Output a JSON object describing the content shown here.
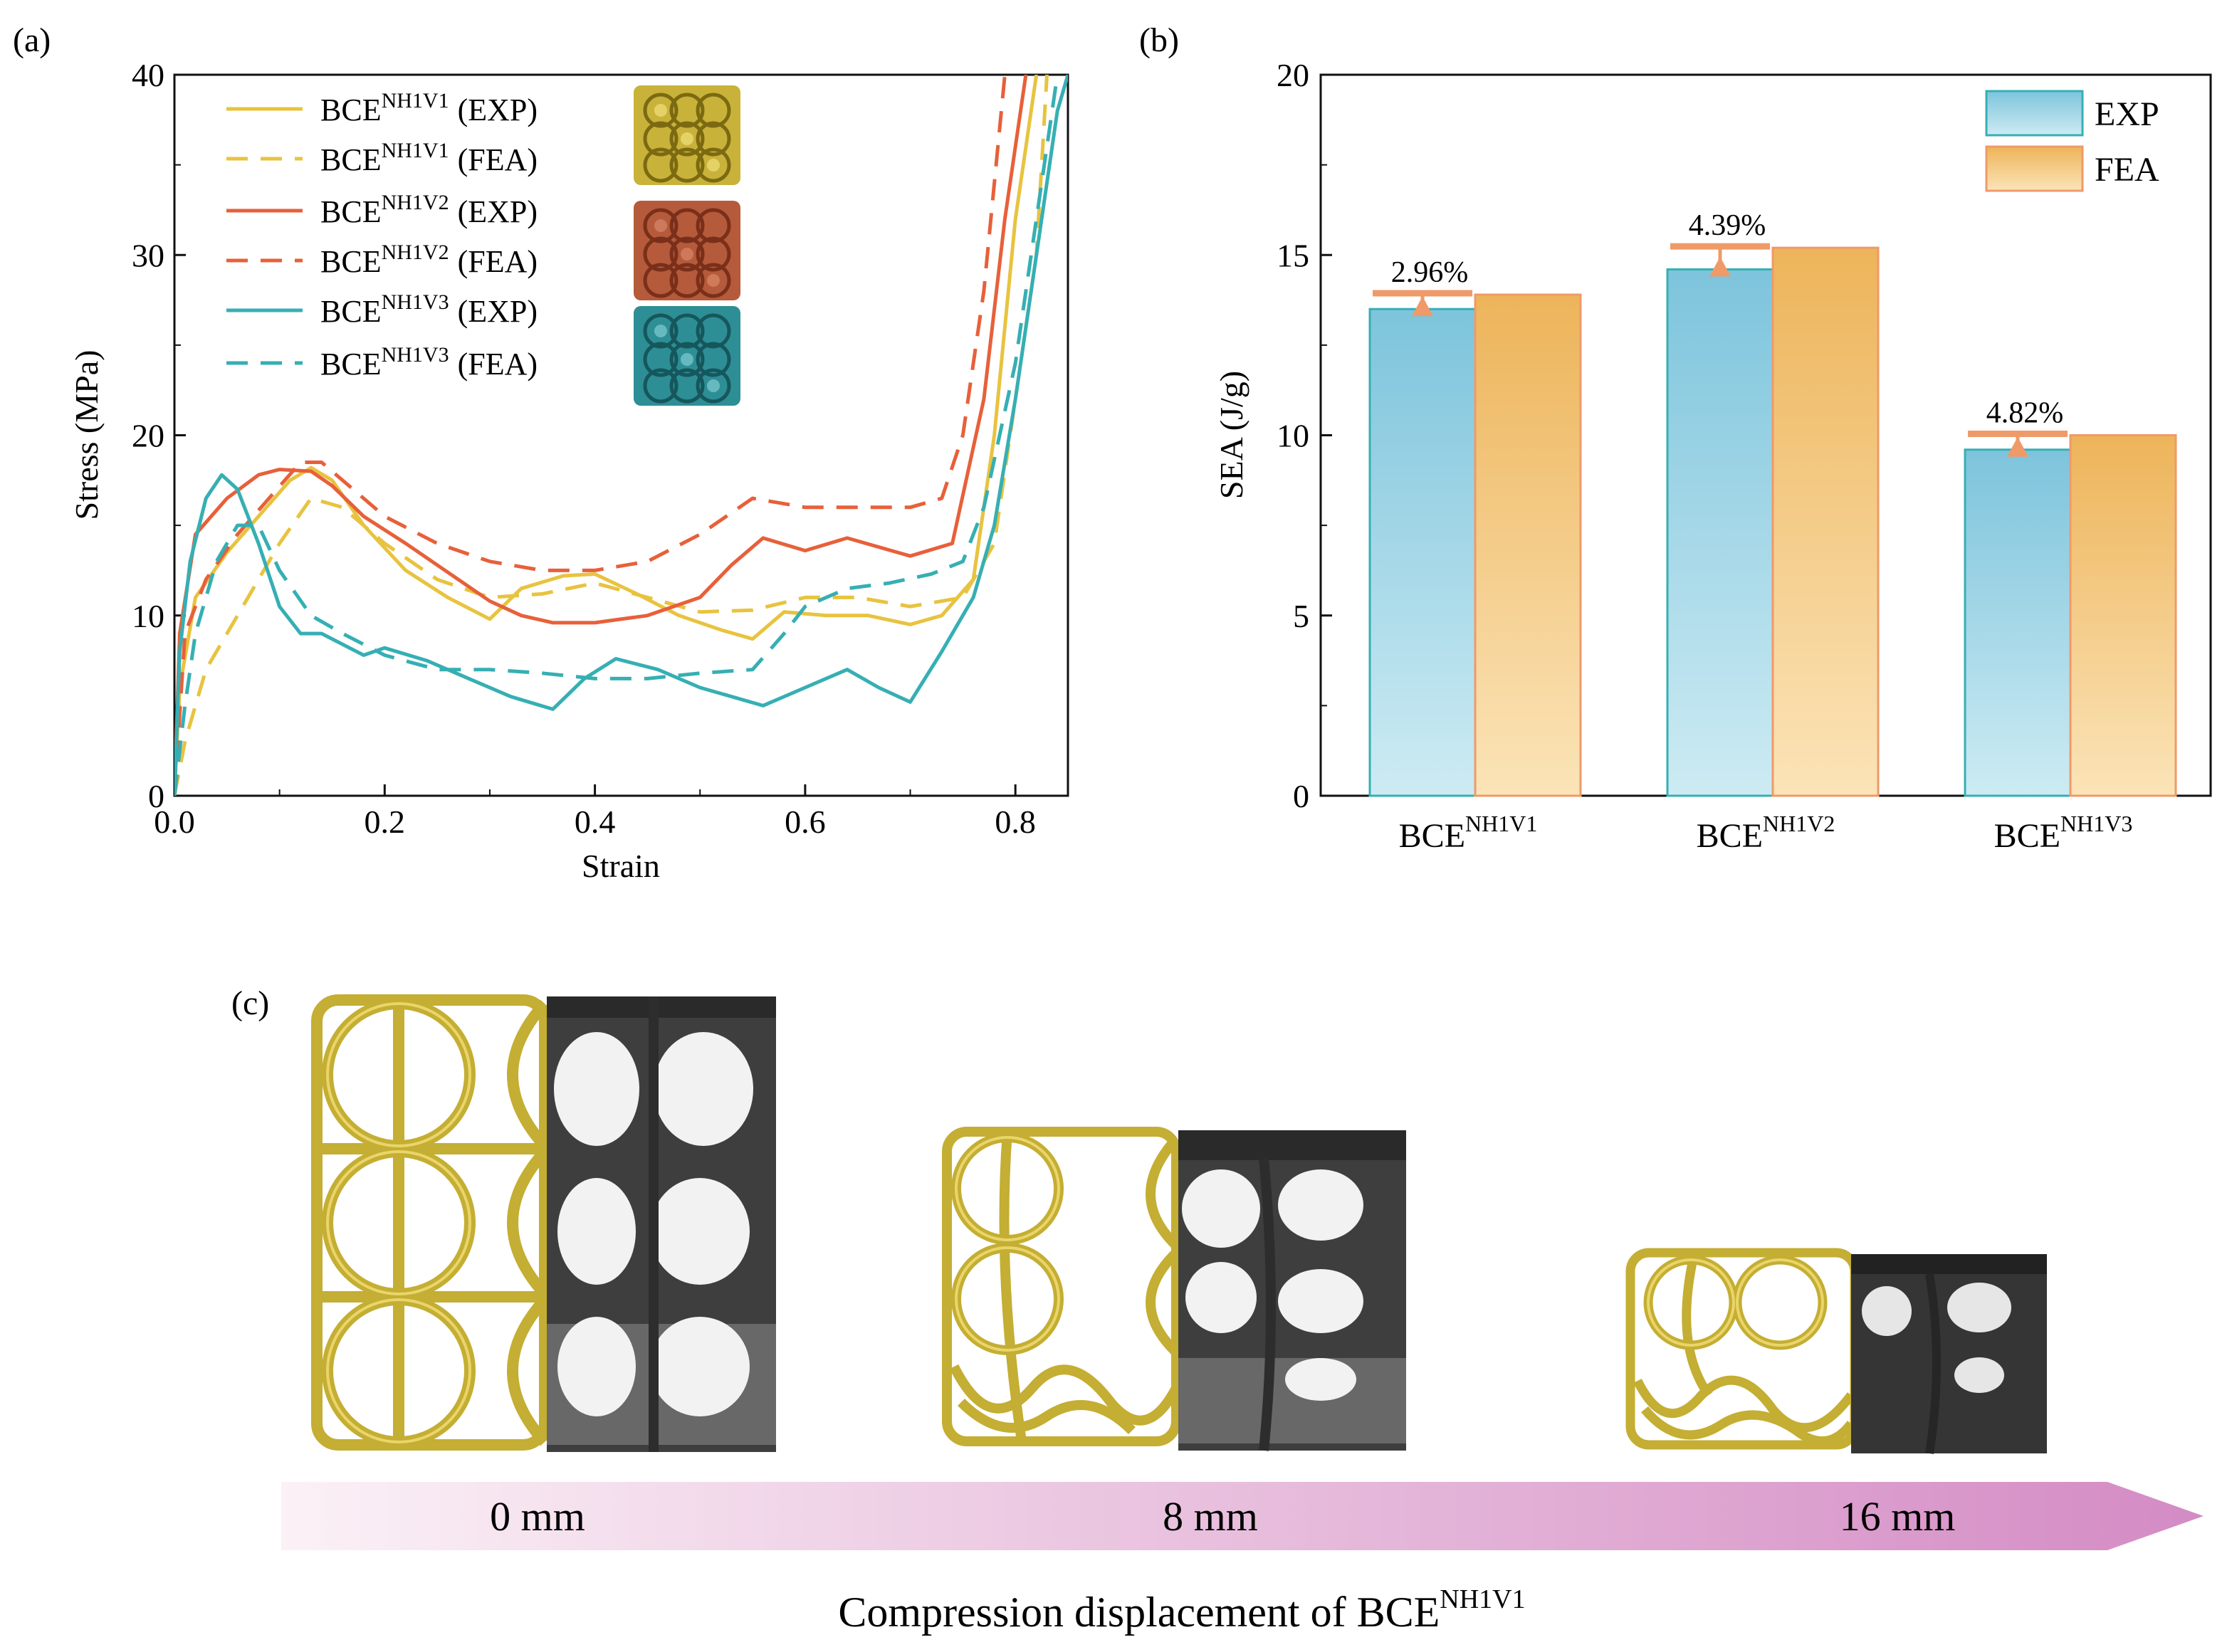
{
  "panels": {
    "a": "(a)",
    "b": "(b)",
    "c": "(c)"
  },
  "chart_data": [
    {
      "type": "line",
      "panel": "(a)",
      "xlabel": "Strain",
      "ylabel": "Stress (MPa)",
      "xlim": [
        0.0,
        0.85
      ],
      "ylim": [
        0,
        40
      ],
      "xticks": [
        "0.0",
        "0.2",
        "0.4",
        "0.6",
        "0.8"
      ],
      "yticks": [
        "0",
        "10",
        "20",
        "30",
        "40"
      ],
      "legend_position": "top-left",
      "series": [
        {
          "name": "BCE",
          "sup": "NH1V1",
          "suffix": "(EXP)",
          "color": "#E8C33F",
          "dash": false,
          "points": [
            [
              0,
              0
            ],
            [
              0.005,
              6
            ],
            [
              0.02,
              11
            ],
            [
              0.05,
              13.5
            ],
            [
              0.08,
              15.5
            ],
            [
              0.11,
              17.5
            ],
            [
              0.13,
              18.2
            ],
            [
              0.15,
              17.5
            ],
            [
              0.18,
              15
            ],
            [
              0.22,
              12.5
            ],
            [
              0.26,
              11
            ],
            [
              0.3,
              9.8
            ],
            [
              0.33,
              11.5
            ],
            [
              0.37,
              12.2
            ],
            [
              0.4,
              12.3
            ],
            [
              0.44,
              11.2
            ],
            [
              0.48,
              10
            ],
            [
              0.52,
              9.2
            ],
            [
              0.55,
              8.7
            ],
            [
              0.58,
              10.2
            ],
            [
              0.62,
              10
            ],
            [
              0.66,
              10
            ],
            [
              0.7,
              9.5
            ],
            [
              0.73,
              10
            ],
            [
              0.76,
              12
            ],
            [
              0.78,
              20
            ],
            [
              0.8,
              32
            ],
            [
              0.82,
              40
            ]
          ]
        },
        {
          "name": "BCE",
          "sup": "NH1V1",
          "suffix": "(FEA)",
          "color": "#E8C33F",
          "dash": true,
          "points": [
            [
              0,
              0
            ],
            [
              0.01,
              3
            ],
            [
              0.03,
              7
            ],
            [
              0.06,
              10
            ],
            [
              0.1,
              14
            ],
            [
              0.13,
              16.5
            ],
            [
              0.16,
              16
            ],
            [
              0.2,
              14
            ],
            [
              0.25,
              12
            ],
            [
              0.3,
              11
            ],
            [
              0.35,
              11.2
            ],
            [
              0.4,
              11.8
            ],
            [
              0.45,
              11
            ],
            [
              0.5,
              10.2
            ],
            [
              0.55,
              10.3
            ],
            [
              0.6,
              11
            ],
            [
              0.65,
              11
            ],
            [
              0.7,
              10.5
            ],
            [
              0.75,
              11
            ],
            [
              0.78,
              14
            ],
            [
              0.8,
              22
            ],
            [
              0.82,
              30
            ],
            [
              0.83,
              40
            ]
          ]
        },
        {
          "name": "BCE",
          "sup": "NH1V2",
          "suffix": "(EXP)",
          "color": "#E7603A",
          "dash": false,
          "points": [
            [
              0,
              0
            ],
            [
              0.005,
              9
            ],
            [
              0.02,
              14.5
            ],
            [
              0.05,
              16.5
            ],
            [
              0.08,
              17.8
            ],
            [
              0.1,
              18.1
            ],
            [
              0.13,
              18
            ],
            [
              0.15,
              17.2
            ],
            [
              0.18,
              15.5
            ],
            [
              0.22,
              14
            ],
            [
              0.27,
              12
            ],
            [
              0.3,
              10.8
            ],
            [
              0.33,
              10
            ],
            [
              0.36,
              9.6
            ],
            [
              0.4,
              9.6
            ],
            [
              0.45,
              10
            ],
            [
              0.5,
              11
            ],
            [
              0.53,
              12.8
            ],
            [
              0.56,
              14.3
            ],
            [
              0.6,
              13.6
            ],
            [
              0.64,
              14.3
            ],
            [
              0.7,
              13.3
            ],
            [
              0.74,
              14
            ],
            [
              0.77,
              22
            ],
            [
              0.79,
              32
            ],
            [
              0.81,
              40
            ]
          ]
        },
        {
          "name": "BCE",
          "sup": "NH1V2",
          "suffix": "(FEA)",
          "color": "#E7603A",
          "dash": true,
          "points": [
            [
              0,
              0
            ],
            [
              0.01,
              9
            ],
            [
              0.03,
              12
            ],
            [
              0.06,
              14.5
            ],
            [
              0.09,
              16.5
            ],
            [
              0.12,
              18.5
            ],
            [
              0.14,
              18.5
            ],
            [
              0.17,
              17
            ],
            [
              0.2,
              15.5
            ],
            [
              0.25,
              14
            ],
            [
              0.3,
              13
            ],
            [
              0.35,
              12.5
            ],
            [
              0.4,
              12.5
            ],
            [
              0.45,
              13
            ],
            [
              0.5,
              14.5
            ],
            [
              0.55,
              16.5
            ],
            [
              0.6,
              16
            ],
            [
              0.65,
              16
            ],
            [
              0.7,
              16
            ],
            [
              0.73,
              16.5
            ],
            [
              0.75,
              20
            ],
            [
              0.77,
              28
            ],
            [
              0.79,
              40
            ]
          ]
        },
        {
          "name": "BCE",
          "sup": "NH1V3",
          "suffix": "(EXP)",
          "color": "#36AFB4",
          "dash": false,
          "points": [
            [
              0,
              0
            ],
            [
              0.005,
              8
            ],
            [
              0.015,
              13
            ],
            [
              0.03,
              16.5
            ],
            [
              0.045,
              17.8
            ],
            [
              0.06,
              17
            ],
            [
              0.08,
              14
            ],
            [
              0.1,
              10.5
            ],
            [
              0.12,
              9
            ],
            [
              0.14,
              9
            ],
            [
              0.18,
              7.8
            ],
            [
              0.2,
              8.2
            ],
            [
              0.24,
              7.5
            ],
            [
              0.28,
              6.5
            ],
            [
              0.32,
              5.5
            ],
            [
              0.36,
              4.8
            ],
            [
              0.39,
              6.5
            ],
            [
              0.42,
              7.6
            ],
            [
              0.46,
              7
            ],
            [
              0.5,
              6
            ],
            [
              0.56,
              5
            ],
            [
              0.6,
              6
            ],
            [
              0.64,
              7
            ],
            [
              0.67,
              6
            ],
            [
              0.7,
              5.2
            ],
            [
              0.73,
              8
            ],
            [
              0.76,
              11
            ],
            [
              0.78,
              15
            ],
            [
              0.8,
              22
            ],
            [
              0.82,
              30
            ],
            [
              0.84,
              38
            ],
            [
              0.85,
              40
            ]
          ]
        },
        {
          "name": "BCE",
          "sup": "NH1V3",
          "suffix": "(FEA)",
          "color": "#36AFB4",
          "dash": true,
          "points": [
            [
              0,
              0
            ],
            [
              0.01,
              5
            ],
            [
              0.02,
              9
            ],
            [
              0.04,
              13
            ],
            [
              0.06,
              15
            ],
            [
              0.08,
              15
            ],
            [
              0.1,
              12.5
            ],
            [
              0.13,
              10
            ],
            [
              0.16,
              9
            ],
            [
              0.2,
              7.8
            ],
            [
              0.25,
              7
            ],
            [
              0.3,
              7
            ],
            [
              0.35,
              6.8
            ],
            [
              0.4,
              6.5
            ],
            [
              0.45,
              6.5
            ],
            [
              0.5,
              6.8
            ],
            [
              0.55,
              7
            ],
            [
              0.58,
              9
            ],
            [
              0.6,
              10.5
            ],
            [
              0.64,
              11.5
            ],
            [
              0.68,
              11.8
            ],
            [
              0.72,
              12.3
            ],
            [
              0.75,
              13
            ],
            [
              0.77,
              16
            ],
            [
              0.8,
              24
            ],
            [
              0.82,
              32
            ],
            [
              0.84,
              40
            ]
          ]
        }
      ]
    },
    {
      "type": "bar",
      "panel": "(b)",
      "xlabel": "",
      "ylabel": "SEA (J/g)",
      "ylim": [
        0,
        20
      ],
      "yticks": [
        "0",
        "5",
        "10",
        "15",
        "20"
      ],
      "legend_position": "top-right",
      "categories": [
        {
          "name": "BCE",
          "sup": "NH1V1"
        },
        {
          "name": "BCE",
          "sup": "NH1V2"
        },
        {
          "name": "BCE",
          "sup": "NH1V3"
        }
      ],
      "series": [
        {
          "name": "EXP",
          "values": [
            13.5,
            14.6,
            9.6
          ],
          "fill_top": "#7DC4DC",
          "fill_bottom": "#CDEBF3",
          "stroke": "#36AFB4"
        },
        {
          "name": "FEA",
          "values": [
            13.9,
            15.2,
            10.0
          ],
          "fill_top": "#EDB45A",
          "fill_bottom": "#FBE4B8",
          "stroke": "#EF9A68"
        }
      ],
      "annotations": [
        "2.96%",
        "4.39%",
        "4.82%"
      ],
      "error_color": "#EF9A68"
    }
  ],
  "panel_c": {
    "stages": [
      "0 mm",
      "8 mm",
      "16 mm"
    ],
    "caption_main": "Compression displacement of BCE",
    "caption_sup": "NH1V1"
  }
}
